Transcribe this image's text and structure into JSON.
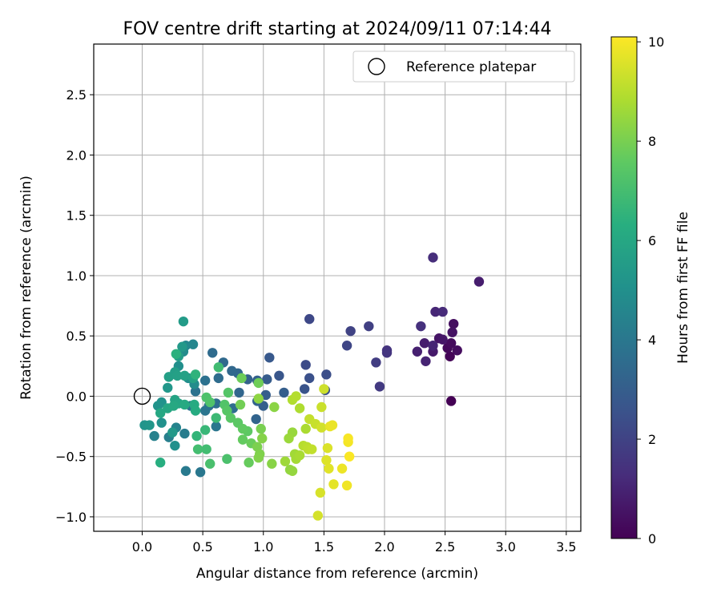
{
  "chart_data": {
    "type": "scatter",
    "title": "FOV centre drift starting at 2024/09/11 07:14:44",
    "xlabel": "Angular distance from reference (arcmin)",
    "ylabel": "Rotation from reference (arcmin)",
    "colorbar_label": "Hours from first FF file",
    "xlim": [
      -0.4,
      3.62
    ],
    "ylim": [
      -1.12,
      2.92
    ],
    "clim": [
      0,
      10.1
    ],
    "colormap": "viridis",
    "x_ticks": [
      0.0,
      0.5,
      1.0,
      1.5,
      2.0,
      2.5,
      3.0,
      3.5
    ],
    "x_tick_labels": [
      "0.0",
      "0.5",
      "1.0",
      "1.5",
      "2.0",
      "2.5",
      "3.0",
      "3.5"
    ],
    "y_ticks": [
      -1.0,
      -0.5,
      0.0,
      0.5,
      1.0,
      1.5,
      2.0,
      2.5
    ],
    "y_tick_labels": [
      "−1.0",
      "−0.5",
      "0.0",
      "0.5",
      "1.0",
      "1.5",
      "2.0",
      "2.5"
    ],
    "colorbar_ticks": [
      0,
      2,
      4,
      6,
      8,
      10
    ],
    "colorbar_tick_labels": [
      "0",
      "2",
      "4",
      "6",
      "8",
      "10"
    ],
    "grid": true,
    "legend": {
      "position": "top-right",
      "entries": [
        "Reference platepar"
      ]
    },
    "reference_point": {
      "x": 0.0,
      "y": 0.0,
      "marker": "open-circle"
    },
    "points": [
      {
        "x": 2.55,
        "y": -0.04,
        "h": 0.0
      },
      {
        "x": 2.54,
        "y": 0.33,
        "h": 0.1
      },
      {
        "x": 2.52,
        "y": 0.4,
        "h": 0.2
      },
      {
        "x": 2.55,
        "y": 0.44,
        "h": 0.3
      },
      {
        "x": 2.6,
        "y": 0.38,
        "h": 0.35
      },
      {
        "x": 2.57,
        "y": 0.6,
        "h": 0.4
      },
      {
        "x": 2.56,
        "y": 0.53,
        "h": 0.5
      },
      {
        "x": 2.45,
        "y": 0.48,
        "h": 0.55
      },
      {
        "x": 2.48,
        "y": 0.47,
        "h": 0.6
      },
      {
        "x": 2.4,
        "y": 0.37,
        "h": 0.7
      },
      {
        "x": 2.33,
        "y": 0.44,
        "h": 0.8
      },
      {
        "x": 2.27,
        "y": 0.37,
        "h": 0.9
      },
      {
        "x": 2.34,
        "y": 0.29,
        "h": 1.0
      },
      {
        "x": 2.4,
        "y": 0.42,
        "h": 1.05
      },
      {
        "x": 2.42,
        "y": 0.7,
        "h": 1.1
      },
      {
        "x": 2.48,
        "y": 0.7,
        "h": 1.2
      },
      {
        "x": 2.4,
        "y": 1.15,
        "h": 1.3
      },
      {
        "x": 2.78,
        "y": 0.95,
        "h": 0.8
      },
      {
        "x": 2.3,
        "y": 0.58,
        "h": 1.4
      },
      {
        "x": 2.02,
        "y": 0.38,
        "h": 1.5
      },
      {
        "x": 2.02,
        "y": 0.36,
        "h": 1.55
      },
      {
        "x": 1.96,
        "y": 0.08,
        "h": 1.7
      },
      {
        "x": 1.93,
        "y": 0.28,
        "h": 1.8
      },
      {
        "x": 1.87,
        "y": 0.58,
        "h": 1.9
      },
      {
        "x": 1.72,
        "y": 0.54,
        "h": 2.0
      },
      {
        "x": 1.69,
        "y": 0.42,
        "h": 2.1
      },
      {
        "x": 1.38,
        "y": 0.64,
        "h": 2.2
      },
      {
        "x": 1.35,
        "y": 0.26,
        "h": 2.3
      },
      {
        "x": 1.52,
        "y": 0.18,
        "h": 2.4
      },
      {
        "x": 1.51,
        "y": 0.05,
        "h": 2.45
      },
      {
        "x": 1.38,
        "y": 0.15,
        "h": 2.5
      },
      {
        "x": 1.34,
        "y": 0.06,
        "h": 2.6
      },
      {
        "x": 1.13,
        "y": 0.17,
        "h": 2.7
      },
      {
        "x": 1.05,
        "y": 0.32,
        "h": 2.8
      },
      {
        "x": 1.03,
        "y": 0.14,
        "h": 2.9
      },
      {
        "x": 1.02,
        "y": 0.01,
        "h": 2.95
      },
      {
        "x": 1.17,
        "y": 0.03,
        "h": 3.0
      },
      {
        "x": 1.0,
        "y": -0.08,
        "h": 3.05
      },
      {
        "x": 0.95,
        "y": 0.13,
        "h": 3.1
      },
      {
        "x": 0.87,
        "y": 0.14,
        "h": 3.15
      },
      {
        "x": 0.95,
        "y": -0.04,
        "h": 3.2
      },
      {
        "x": 0.94,
        "y": -0.19,
        "h": 3.25
      },
      {
        "x": 0.8,
        "y": 0.03,
        "h": 3.3
      },
      {
        "x": 0.79,
        "y": 0.19,
        "h": 3.35
      },
      {
        "x": 0.74,
        "y": 0.21,
        "h": 3.4
      },
      {
        "x": 0.67,
        "y": 0.28,
        "h": 3.45
      },
      {
        "x": 0.58,
        "y": 0.36,
        "h": 3.5
      },
      {
        "x": 0.63,
        "y": 0.15,
        "h": 3.55
      },
      {
        "x": 0.75,
        "y": -0.1,
        "h": 3.6
      },
      {
        "x": 0.61,
        "y": -0.06,
        "h": 3.65
      },
      {
        "x": 0.55,
        "y": -0.08,
        "h": 3.7
      },
      {
        "x": 0.52,
        "y": 0.13,
        "h": 3.75
      },
      {
        "x": 0.44,
        "y": 0.04,
        "h": 3.8
      },
      {
        "x": 0.4,
        "y": -0.08,
        "h": 3.85
      },
      {
        "x": 0.52,
        "y": -0.12,
        "h": 3.9
      },
      {
        "x": 0.61,
        "y": -0.25,
        "h": 3.95
      },
      {
        "x": 0.48,
        "y": -0.63,
        "h": 4.0
      },
      {
        "x": 0.36,
        "y": -0.62,
        "h": 4.1
      },
      {
        "x": 0.35,
        "y": -0.31,
        "h": 4.2
      },
      {
        "x": 0.22,
        "y": -0.34,
        "h": 4.3
      },
      {
        "x": 0.1,
        "y": -0.33,
        "h": 4.4
      },
      {
        "x": 0.28,
        "y": -0.26,
        "h": 4.5
      },
      {
        "x": 0.42,
        "y": 0.43,
        "h": 4.6
      },
      {
        "x": 0.36,
        "y": 0.42,
        "h": 4.7
      },
      {
        "x": 0.34,
        "y": 0.37,
        "h": 4.8
      },
      {
        "x": 0.43,
        "y": 0.1,
        "h": 4.85
      },
      {
        "x": 0.38,
        "y": 0.15,
        "h": 4.9
      },
      {
        "x": 0.3,
        "y": 0.25,
        "h": 4.95
      },
      {
        "x": 0.27,
        "y": -0.41,
        "h": 5.0
      },
      {
        "x": 0.16,
        "y": -0.22,
        "h": 5.05
      },
      {
        "x": 0.16,
        "y": -0.05,
        "h": 5.1
      },
      {
        "x": 0.13,
        "y": -0.08,
        "h": 5.15
      },
      {
        "x": 0.02,
        "y": -0.24,
        "h": 5.2
      },
      {
        "x": 0.06,
        "y": -0.24,
        "h": 5.25
      },
      {
        "x": 0.21,
        "y": 0.07,
        "h": 5.3
      },
      {
        "x": 0.25,
        "y": -0.3,
        "h": 5.35
      },
      {
        "x": 0.33,
        "y": 0.41,
        "h": 5.4
      },
      {
        "x": 0.34,
        "y": 0.62,
        "h": 5.5
      },
      {
        "x": 0.3,
        "y": 0.33,
        "h": 5.55
      },
      {
        "x": 0.27,
        "y": 0.2,
        "h": 5.6
      },
      {
        "x": 0.22,
        "y": 0.16,
        "h": 5.65
      },
      {
        "x": 0.29,
        "y": 0.17,
        "h": 5.7
      },
      {
        "x": 0.35,
        "y": 0.17,
        "h": 5.75
      },
      {
        "x": 0.42,
        "y": 0.15,
        "h": 5.8
      },
      {
        "x": 0.27,
        "y": -0.03,
        "h": 5.85
      },
      {
        "x": 0.3,
        "y": -0.06,
        "h": 5.9
      },
      {
        "x": 0.21,
        "y": -0.1,
        "h": 5.95
      },
      {
        "x": 0.15,
        "y": -0.14,
        "h": 6.0
      },
      {
        "x": 0.26,
        "y": -0.08,
        "h": 6.05
      },
      {
        "x": 0.35,
        "y": -0.07,
        "h": 6.1
      },
      {
        "x": 0.43,
        "y": -0.07,
        "h": 6.15
      },
      {
        "x": 0.44,
        "y": -0.12,
        "h": 6.2
      },
      {
        "x": 0.15,
        "y": -0.55,
        "h": 6.3
      },
      {
        "x": 0.28,
        "y": 0.35,
        "h": 6.4
      },
      {
        "x": 0.44,
        "y": 0.18,
        "h": 6.5
      },
      {
        "x": 0.45,
        "y": -0.33,
        "h": 6.6
      },
      {
        "x": 0.52,
        "y": -0.28,
        "h": 6.7
      },
      {
        "x": 0.61,
        "y": -0.18,
        "h": 6.8
      },
      {
        "x": 0.63,
        "y": 0.24,
        "h": 6.9
      },
      {
        "x": 0.53,
        "y": -0.44,
        "h": 6.95
      },
      {
        "x": 0.46,
        "y": -0.44,
        "h": 7.0
      },
      {
        "x": 0.56,
        "y": -0.56,
        "h": 7.1
      },
      {
        "x": 0.7,
        "y": -0.52,
        "h": 7.15
      },
      {
        "x": 0.53,
        "y": -0.01,
        "h": 7.2
      },
      {
        "x": 0.56,
        "y": -0.05,
        "h": 7.25
      },
      {
        "x": 0.68,
        "y": -0.07,
        "h": 7.3
      },
      {
        "x": 0.71,
        "y": 0.03,
        "h": 7.35
      },
      {
        "x": 0.7,
        "y": -0.12,
        "h": 7.4
      },
      {
        "x": 0.73,
        "y": -0.18,
        "h": 7.45
      },
      {
        "x": 0.79,
        "y": -0.22,
        "h": 7.5
      },
      {
        "x": 0.87,
        "y": -0.29,
        "h": 7.55
      },
      {
        "x": 0.83,
        "y": -0.27,
        "h": 7.6
      },
      {
        "x": 0.83,
        "y": -0.36,
        "h": 7.65
      },
      {
        "x": 0.88,
        "y": -0.55,
        "h": 7.7
      },
      {
        "x": 0.9,
        "y": -0.39,
        "h": 7.75
      },
      {
        "x": 0.82,
        "y": 0.15,
        "h": 7.8
      },
      {
        "x": 0.96,
        "y": 0.11,
        "h": 7.85
      },
      {
        "x": 0.81,
        "y": -0.07,
        "h": 7.9
      },
      {
        "x": 0.98,
        "y": -0.27,
        "h": 8.0
      },
      {
        "x": 0.95,
        "y": -0.42,
        "h": 8.05
      },
      {
        "x": 0.97,
        "y": -0.48,
        "h": 8.1
      },
      {
        "x": 0.96,
        "y": -0.51,
        "h": 8.15
      },
      {
        "x": 0.99,
        "y": -0.35,
        "h": 8.2
      },
      {
        "x": 1.07,
        "y": -0.56,
        "h": 8.25
      },
      {
        "x": 1.09,
        "y": -0.09,
        "h": 8.3
      },
      {
        "x": 0.96,
        "y": -0.02,
        "h": 8.35
      },
      {
        "x": 1.22,
        "y": -0.61,
        "h": 8.4
      },
      {
        "x": 1.24,
        "y": -0.62,
        "h": 8.45
      },
      {
        "x": 1.24,
        "y": -0.3,
        "h": 8.5
      },
      {
        "x": 1.21,
        "y": -0.35,
        "h": 8.55
      },
      {
        "x": 1.18,
        "y": -0.54,
        "h": 8.6
      },
      {
        "x": 1.26,
        "y": -0.48,
        "h": 8.65
      },
      {
        "x": 1.27,
        "y": -0.52,
        "h": 8.7
      },
      {
        "x": 1.3,
        "y": -0.49,
        "h": 8.75
      },
      {
        "x": 1.35,
        "y": -0.27,
        "h": 8.8
      },
      {
        "x": 1.3,
        "y": -0.1,
        "h": 8.85
      },
      {
        "x": 1.24,
        "y": -0.03,
        "h": 8.9
      },
      {
        "x": 1.27,
        "y": 0.0,
        "h": 8.95
      },
      {
        "x": 1.33,
        "y": -0.41,
        "h": 9.0
      },
      {
        "x": 1.36,
        "y": -0.42,
        "h": 9.05
      },
      {
        "x": 1.37,
        "y": -0.44,
        "h": 9.1
      },
      {
        "x": 1.4,
        "y": -0.44,
        "h": 9.15
      },
      {
        "x": 1.38,
        "y": -0.19,
        "h": 9.2
      },
      {
        "x": 1.43,
        "y": -0.23,
        "h": 9.25
      },
      {
        "x": 1.48,
        "y": -0.09,
        "h": 9.3
      },
      {
        "x": 1.5,
        "y": 0.06,
        "h": 9.35
      },
      {
        "x": 1.48,
        "y": -0.26,
        "h": 9.4
      },
      {
        "x": 1.45,
        "y": -0.99,
        "h": 9.45
      },
      {
        "x": 1.47,
        "y": -0.8,
        "h": 9.5
      },
      {
        "x": 1.53,
        "y": -0.43,
        "h": 9.55
      },
      {
        "x": 1.52,
        "y": -0.53,
        "h": 9.6
      },
      {
        "x": 1.54,
        "y": -0.6,
        "h": 9.65
      },
      {
        "x": 1.58,
        "y": -0.73,
        "h": 9.7
      },
      {
        "x": 1.55,
        "y": -0.25,
        "h": 9.75
      },
      {
        "x": 1.57,
        "y": -0.24,
        "h": 9.8
      },
      {
        "x": 1.65,
        "y": -0.6,
        "h": 9.85
      },
      {
        "x": 1.69,
        "y": -0.74,
        "h": 9.9
      },
      {
        "x": 1.7,
        "y": -0.38,
        "h": 9.95
      },
      {
        "x": 1.7,
        "y": -0.35,
        "h": 10.0
      },
      {
        "x": 1.71,
        "y": -0.5,
        "h": 10.05
      }
    ]
  }
}
